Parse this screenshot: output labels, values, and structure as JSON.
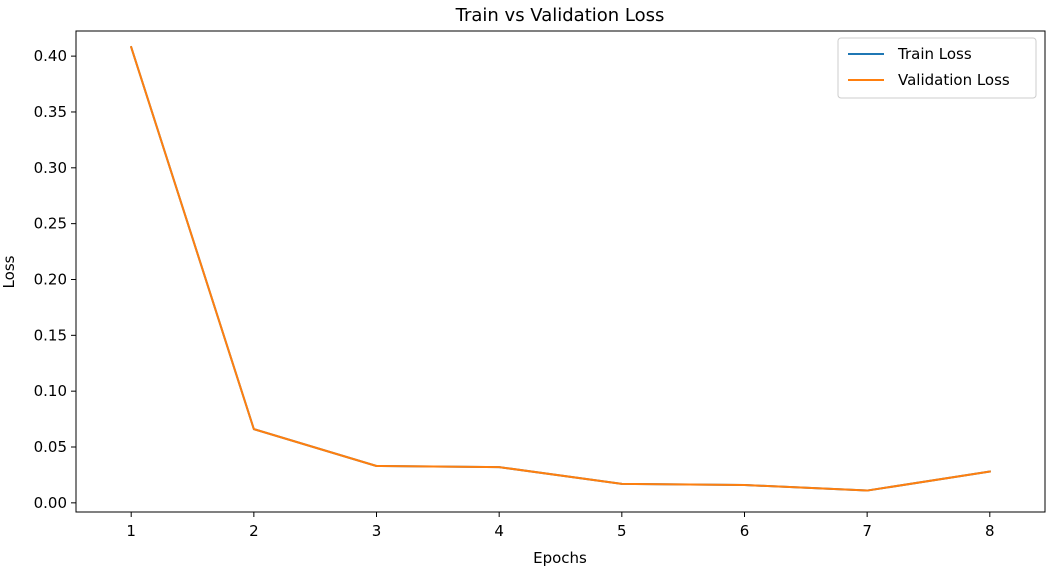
{
  "chart_data": {
    "type": "line",
    "title": "Train vs Validation Loss",
    "xlabel": "Epochs",
    "ylabel": "Loss",
    "x": [
      1,
      2,
      3,
      4,
      5,
      6,
      7,
      8
    ],
    "xlim": [
      0.55,
      8.45
    ],
    "ylim": [
      -0.0082,
      0.4225
    ],
    "xticks": [
      "1",
      "2",
      "3",
      "4",
      "5",
      "6",
      "7",
      "8"
    ],
    "yticks": [
      "0.00",
      "0.05",
      "0.10",
      "0.15",
      "0.20",
      "0.25",
      "0.30",
      "0.35",
      "0.40"
    ],
    "grid": false,
    "legend_position": "upper right",
    "series": [
      {
        "name": "Train Loss",
        "color": "#1f77b4",
        "values": [
          0.408,
          0.066,
          0.033,
          0.032,
          0.017,
          0.016,
          0.011,
          0.028
        ]
      },
      {
        "name": "Validation Loss",
        "color": "#ff7f0e",
        "values": [
          0.408,
          0.066,
          0.033,
          0.032,
          0.017,
          0.016,
          0.011,
          0.028
        ]
      }
    ]
  }
}
